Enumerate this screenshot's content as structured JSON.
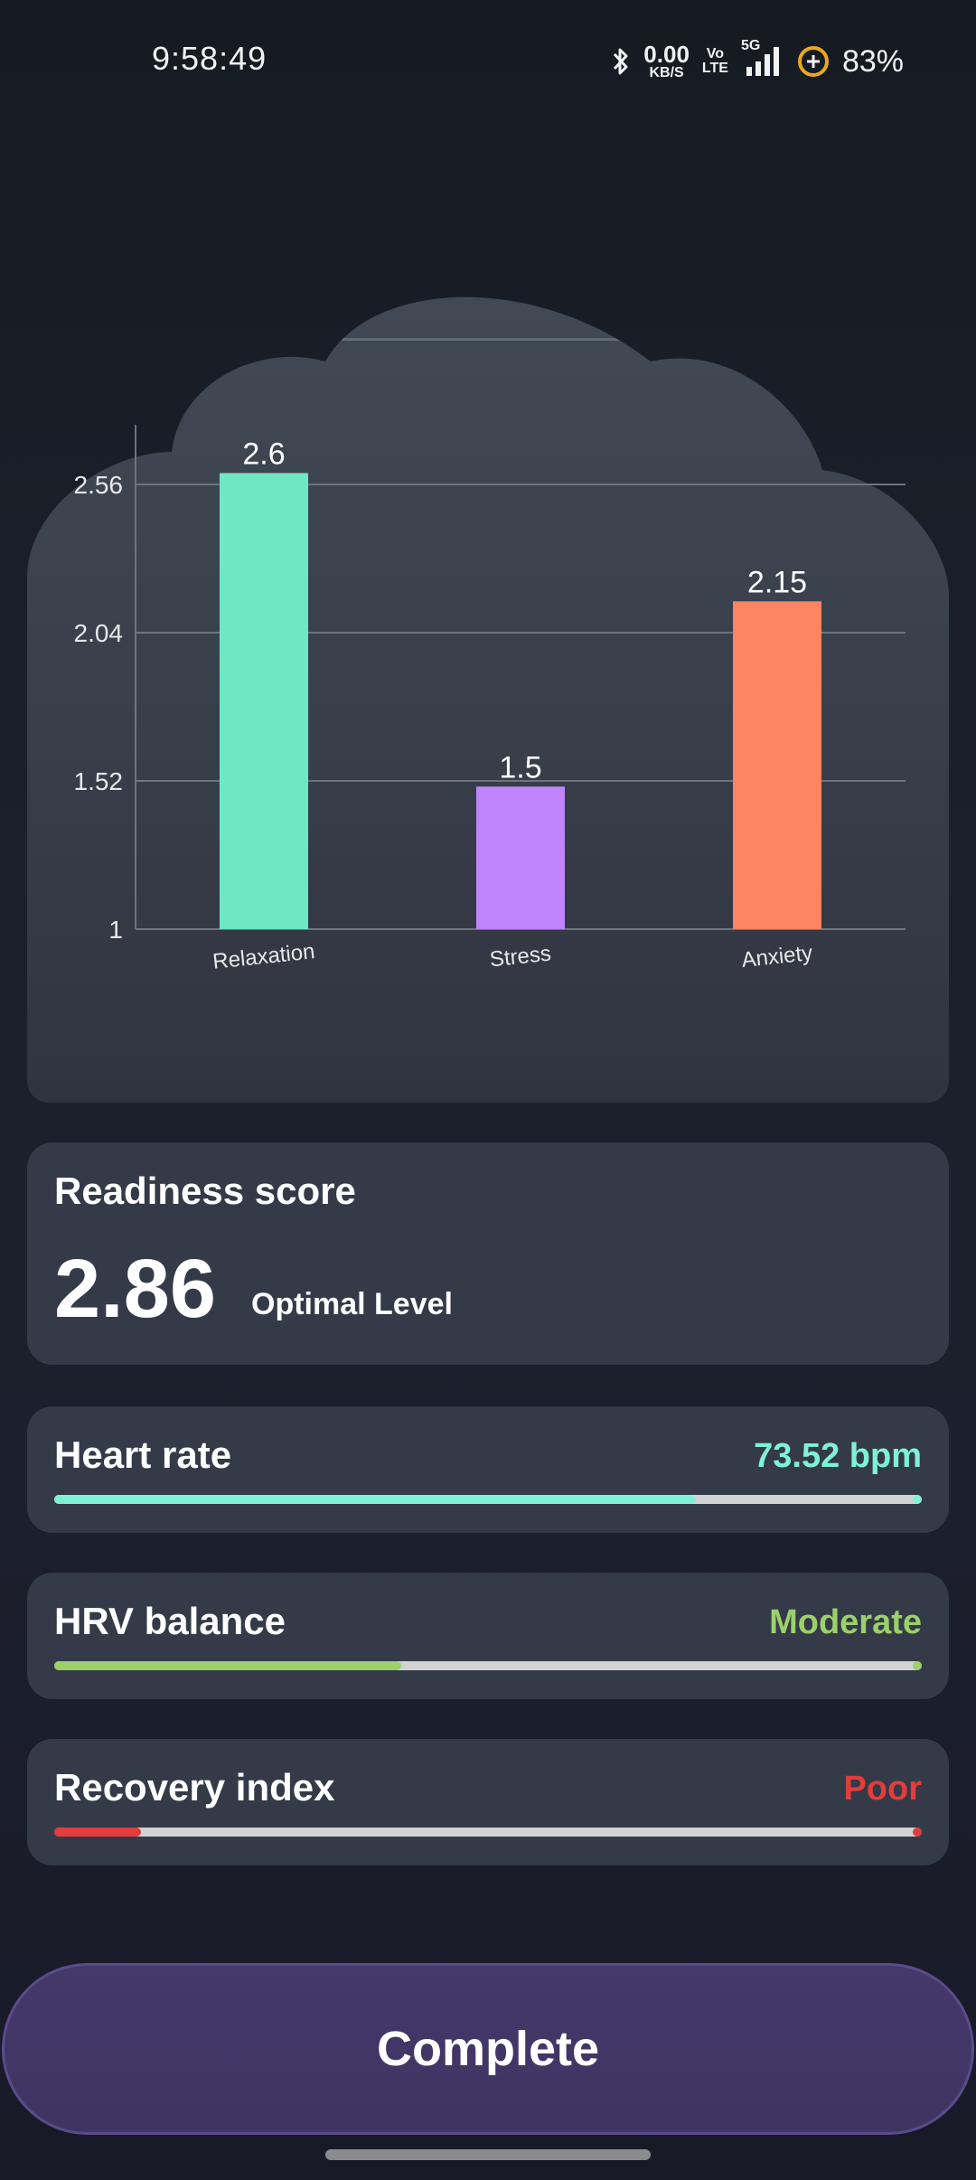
{
  "status_bar": {
    "time": "9:58:49",
    "net_speed_value": "0.00",
    "net_speed_unit": "KB/S",
    "volte_top": "Vo",
    "volte_bottom": "LTE",
    "network": "5G",
    "battery": "83%",
    "icons": [
      "bluetooth-icon",
      "signal-icon",
      "battery-saver-icon"
    ]
  },
  "chart_data": {
    "type": "bar",
    "categories": [
      "Relaxation",
      "Stress",
      "Anxiety"
    ],
    "values": [
      2.6,
      1.5,
      2.15
    ],
    "value_labels": [
      "2.6",
      "1.5",
      "2.15"
    ],
    "colors": [
      "#6ee7c2",
      "#c084fc",
      "#ff8462"
    ],
    "yticks": [
      "1",
      "1.52",
      "2.04",
      "2.56"
    ],
    "ytick_values": [
      1,
      1.52,
      2.04,
      2.56
    ],
    "ylim": [
      1,
      3.08
    ],
    "grid": true
  },
  "readiness": {
    "title": "Readiness score",
    "score": "2.86",
    "level": "Optimal Level"
  },
  "metrics": [
    {
      "title": "Heart rate",
      "value": "73.52 bpm",
      "color": "#7ff2d6",
      "end_color": "#7ff2d6",
      "fraction": 0.74
    },
    {
      "title": "HRV balance",
      "value": "Moderate",
      "color": "#9bd06a",
      "end_color": "#9bd06a",
      "fraction": 0.4
    },
    {
      "title": "Recovery index",
      "value": "Poor",
      "color": "#e23c3c",
      "end_color": "#e23c3c",
      "fraction": 0.1
    }
  ],
  "complete_label": "Complete"
}
